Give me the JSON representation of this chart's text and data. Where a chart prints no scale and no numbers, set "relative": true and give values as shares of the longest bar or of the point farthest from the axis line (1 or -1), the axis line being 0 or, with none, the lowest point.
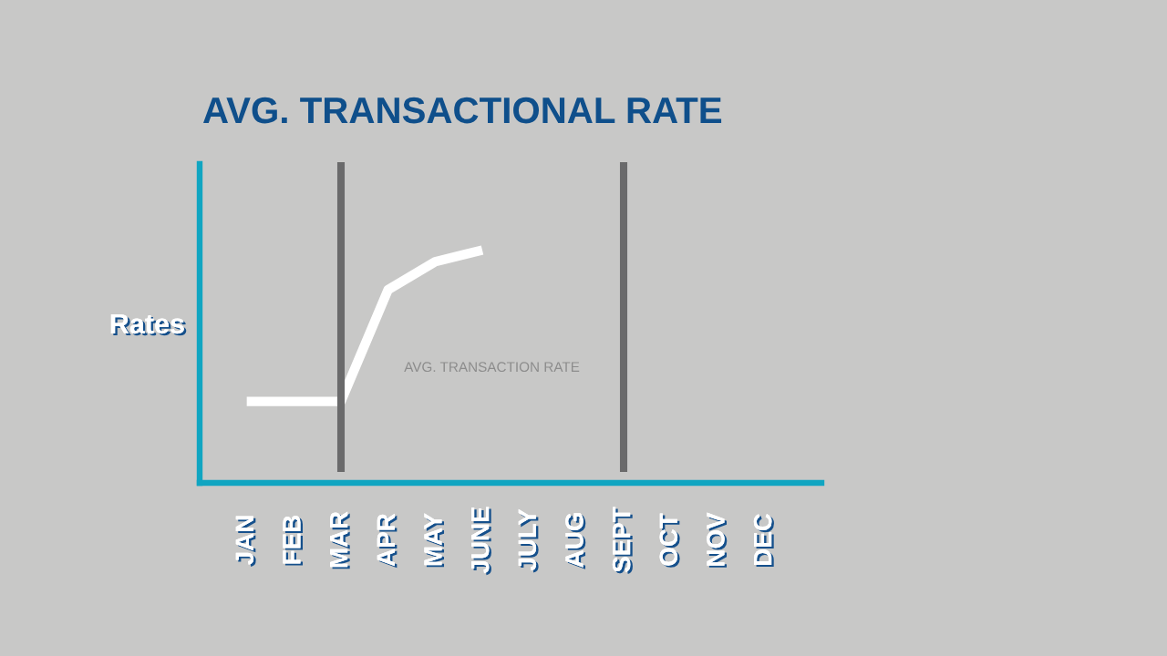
{
  "chart_data": {
    "type": "line",
    "title": "AVG. TRANSACTIONAL RATE",
    "ylabel": "Rates",
    "annotations": [
      "AVG. TRANSACTION RATE"
    ],
    "categories": [
      "JAN",
      "FEB",
      "MAR",
      "APR",
      "MAY",
      "JUNE",
      "JULY",
      "AUG",
      "SEPT",
      "OCT",
      "NOV",
      "DEC"
    ],
    "series": [
      {
        "color": "#ffffff",
        "values": [
          0.35,
          0.35,
          0.35,
          0.83,
          0.95,
          1.0,
          null,
          null,
          null,
          null,
          null,
          null
        ]
      }
    ],
    "relative": true,
    "ref_lines": [
      {
        "axis": "x",
        "value": "MAR",
        "color": "#6a6a6b"
      },
      {
        "axis": "x",
        "value": "SEPT",
        "color": "#6a6a6b"
      }
    ],
    "tick_labels": "x",
    "marker": "none",
    "line_style": "solid"
  }
}
